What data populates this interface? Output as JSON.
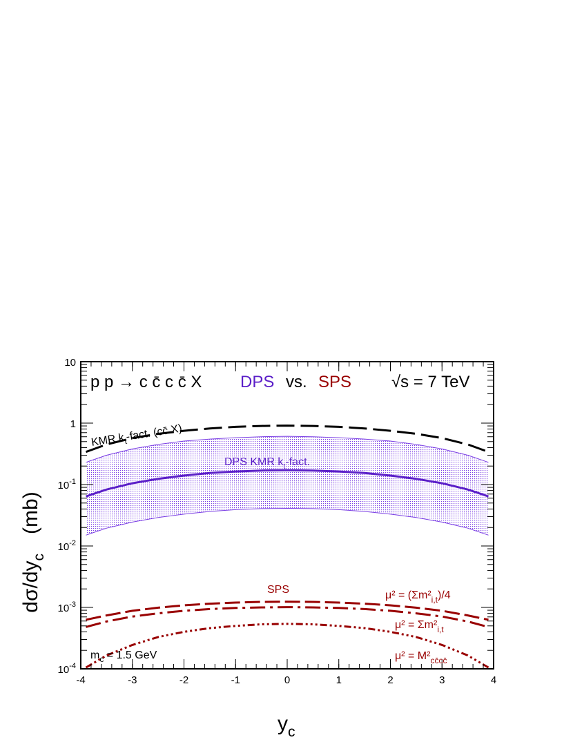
{
  "chart_data": {
    "type": "line",
    "title": "",
    "xlabel": "y",
    "xlabel_sub": "c",
    "ylabel": "dσ/dy",
    "ylabel_sub": "c",
    "ylabel_unit": "(mb)",
    "xlim": [
      -4,
      4
    ],
    "ylim": [
      0.0001,
      10
    ],
    "yscale": "log",
    "grid": false,
    "x_ticks": [
      -4,
      -3,
      -2,
      -1,
      0,
      1,
      2,
      3,
      4
    ],
    "y_ticks": [
      {
        "value": 0.0001,
        "base": "10",
        "exp": "-4"
      },
      {
        "value": 0.001,
        "base": "10",
        "exp": "-3"
      },
      {
        "value": 0.01,
        "base": "10",
        "exp": "-2"
      },
      {
        "value": 0.1,
        "base": "10",
        "exp": "-1"
      },
      {
        "value": 1,
        "base": "1",
        "exp": ""
      },
      {
        "value": 10,
        "base": "10",
        "exp": ""
      }
    ],
    "x": [
      -3.9,
      -3.5,
      -3,
      -2.5,
      -2,
      -1.5,
      -1,
      -0.5,
      0,
      0.5,
      1,
      1.5,
      2,
      2.5,
      3,
      3.5,
      3.9
    ],
    "series": [
      {
        "key": "kmr",
        "color": "#000000",
        "dash": "26,9",
        "values": [
          0.34,
          0.45,
          0.57,
          0.67,
          0.75,
          0.82,
          0.87,
          0.9,
          0.91,
          0.9,
          0.87,
          0.82,
          0.75,
          0.67,
          0.57,
          0.45,
          0.34
        ]
      },
      {
        "key": "dps_central",
        "color": "#5b1fc8",
        "dash": "",
        "values": [
          0.064,
          0.083,
          0.105,
          0.124,
          0.14,
          0.154,
          0.163,
          0.169,
          0.171,
          0.169,
          0.163,
          0.154,
          0.14,
          0.124,
          0.105,
          0.083,
          0.064
        ]
      },
      {
        "key": "sps_sum_m2_over4",
        "color": "#990000",
        "dash": "22,7",
        "values": [
          0.00063,
          0.00074,
          0.00088,
          0.00099,
          0.00108,
          0.00115,
          0.0012,
          0.00123,
          0.00124,
          0.00123,
          0.0012,
          0.00115,
          0.00108,
          0.00099,
          0.00088,
          0.00074,
          0.00063
        ]
      },
      {
        "key": "sps_sum_m2",
        "color": "#990000",
        "dash": "22,7,4,7",
        "values": [
          0.00048,
          0.00059,
          0.00071,
          0.0008,
          0.00088,
          0.00094,
          0.00098,
          0.001,
          0.00101,
          0.001,
          0.00098,
          0.00094,
          0.00088,
          0.0008,
          0.00071,
          0.00059,
          0.00048
        ]
      },
      {
        "key": "sps_M2",
        "color": "#990000",
        "dash": "10,4,3,4,3,4,3,4",
        "values": [
          0.000105,
          0.000165,
          0.000245,
          0.00033,
          0.0004,
          0.00046,
          0.0005,
          0.00053,
          0.00054,
          0.00053,
          0.0005,
          0.00046,
          0.0004,
          0.00033,
          0.000245,
          0.000165,
          0.000105
        ]
      }
    ],
    "band": {
      "color": "#7b3fe4",
      "upper": [
        0.23,
        0.3,
        0.38,
        0.45,
        0.51,
        0.55,
        0.58,
        0.6,
        0.61,
        0.6,
        0.58,
        0.55,
        0.51,
        0.45,
        0.38,
        0.3,
        0.23
      ],
      "lower": [
        0.015,
        0.0195,
        0.0245,
        0.029,
        0.033,
        0.0365,
        0.039,
        0.0405,
        0.041,
        0.0405,
        0.039,
        0.0365,
        0.033,
        0.029,
        0.0245,
        0.0195,
        0.015
      ]
    }
  },
  "labels": {
    "process": "p p → c c̄ c c̄ X",
    "dps": "DPS",
    "vs": "vs.",
    "sps": "SPS",
    "energy": "√s = 7 TeV",
    "kmr_line": "KMR k",
    "kmr_line_sub": "t",
    "kmr_line_rest": "-fact. (cc̄ X)",
    "dps_label": "DPS KMR k",
    "dps_label_sub": "t",
    "dps_label_rest": "-fact.",
    "sps_label": "SPS",
    "mu1": "μ² = (Σm²",
    "mu1_sub": "i,t",
    "mu1_rest": ")/4",
    "mu2": "μ² = Σm²",
    "mu2_sub": "i,t",
    "mu3": "μ² = M²",
    "mu3_sub": "cc̄cc̄",
    "mc": "m",
    "mc_sub": "c",
    "mc_rest": " = 1.5 GeV"
  },
  "colors": {
    "dps": "#5b1fc8",
    "sps": "#990000",
    "axis": "#000000"
  }
}
